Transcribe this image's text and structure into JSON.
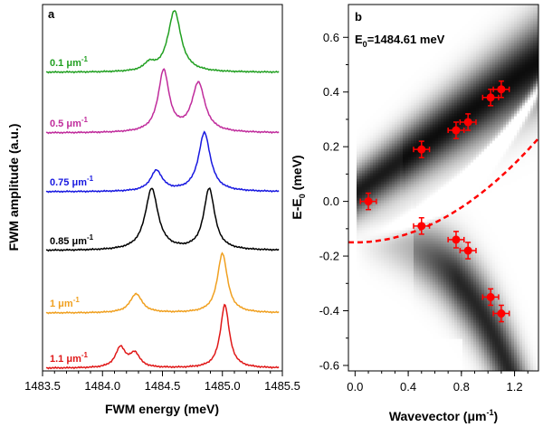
{
  "chart_data": [
    {
      "panel_label": "a",
      "type": "line",
      "xlabel": "FWM energy (meV)",
      "ylabel": "FWM amplitude (a.u.)",
      "xlim": [
        1483.5,
        1485.5
      ],
      "xticks": [
        "1483.5",
        "1484.0",
        "1484.5",
        "1485.0",
        "1485.5"
      ],
      "y_ticks_shown": false,
      "series": [
        {
          "name": "0.1 μm-1",
          "label_text": "0.1 μm",
          "label_sup": "-1",
          "color": "#22a022",
          "peaks": [
            {
              "x": 1484.39,
              "amp": 0.12,
              "w": 0.05
            },
            {
              "x": 1484.6,
              "amp": 1.0,
              "w": 0.065
            }
          ]
        },
        {
          "name": "0.5 μm-1",
          "label_text": "0.5 μm",
          "label_sup": "-1",
          "color": "#c02c9c",
          "peaks": [
            {
              "x": 1484.51,
              "amp": 1.0,
              "w": 0.055
            },
            {
              "x": 1484.8,
              "amp": 0.8,
              "w": 0.065
            }
          ]
        },
        {
          "name": "0.75 μm-1",
          "label_text": "0.75 μm",
          "label_sup": "-1",
          "color": "#1818e0",
          "peaks": [
            {
              "x": 1484.45,
              "amp": 0.35,
              "w": 0.06
            },
            {
              "x": 1484.85,
              "amp": 1.0,
              "w": 0.06
            }
          ]
        },
        {
          "name": "0.85 μm-1",
          "label_text": "0.85 μm",
          "label_sup": "-1",
          "color": "#000000",
          "peaks": [
            {
              "x": 1484.41,
              "amp": 1.0,
              "w": 0.065
            },
            {
              "x": 1484.89,
              "amp": 1.0,
              "w": 0.055
            }
          ]
        },
        {
          "name": "1 μm-1",
          "label_text": "1 μm",
          "label_sup": "-1",
          "color": "#f0a020",
          "peaks": [
            {
              "x": 1484.28,
              "amp": 0.32,
              "w": 0.06
            },
            {
              "x": 1485.0,
              "amp": 1.0,
              "w": 0.05
            }
          ]
        },
        {
          "name": "1.1 μm-1",
          "label_text": "1.1 μm",
          "label_sup": "-1",
          "color": "#e01818",
          "peaks": [
            {
              "x": 1484.15,
              "amp": 0.32,
              "w": 0.05
            },
            {
              "x": 1484.27,
              "amp": 0.22,
              "w": 0.05
            },
            {
              "x": 1485.02,
              "amp": 1.0,
              "w": 0.045
            }
          ]
        }
      ]
    },
    {
      "panel_label": "b",
      "type": "heatmap",
      "annotation": "E",
      "annotation_sub": "0",
      "annotation_rest": "=1484.61 meV",
      "xlabel": "Wavevector (μm",
      "xlabel_sup": "-1",
      "xlabel_end": ")",
      "ylabel": "E-E",
      "ylabel_sub": "0",
      "ylabel_end": " (meV)",
      "xlim": [
        -0.05,
        1.38
      ],
      "ylim": [
        -0.62,
        0.72
      ],
      "xticks": [
        0.0,
        0.4,
        0.8,
        1.2
      ],
      "xtick_labels": [
        "0.0",
        "0.4",
        "0.8",
        "1.2"
      ],
      "yticks": [
        -0.6,
        -0.4,
        -0.2,
        0.0,
        0.2,
        0.4,
        0.6
      ],
      "ytick_labels": [
        "-0.6",
        "-0.4",
        "-0.2",
        "0.0",
        "0.2",
        "0.4",
        "0.6"
      ],
      "marker_color": "#ff0000",
      "points": [
        {
          "x": 0.1,
          "y": 0.0,
          "xerr": 0.06,
          "yerr": 0.03
        },
        {
          "x": 0.5,
          "y": 0.19,
          "xerr": 0.06,
          "yerr": 0.03
        },
        {
          "x": 0.76,
          "y": 0.26,
          "xerr": 0.06,
          "yerr": 0.03
        },
        {
          "x": 0.85,
          "y": 0.29,
          "xerr": 0.06,
          "yerr": 0.03
        },
        {
          "x": 1.02,
          "y": 0.38,
          "xerr": 0.06,
          "yerr": 0.03
        },
        {
          "x": 1.1,
          "y": 0.41,
          "xerr": 0.06,
          "yerr": 0.03
        },
        {
          "x": 0.5,
          "y": -0.09,
          "xerr": 0.06,
          "yerr": 0.03
        },
        {
          "x": 0.76,
          "y": -0.14,
          "xerr": 0.06,
          "yerr": 0.03
        },
        {
          "x": 0.85,
          "y": -0.18,
          "xerr": 0.06,
          "yerr": 0.03
        },
        {
          "x": 1.02,
          "y": -0.35,
          "xerr": 0.06,
          "yerr": 0.03
        },
        {
          "x": 1.1,
          "y": -0.41,
          "xerr": 0.06,
          "yerr": 0.03
        }
      ],
      "dashed_curve": {
        "color": "#ff0000",
        "y0": -0.15,
        "curvature": 0.2
      }
    }
  ]
}
